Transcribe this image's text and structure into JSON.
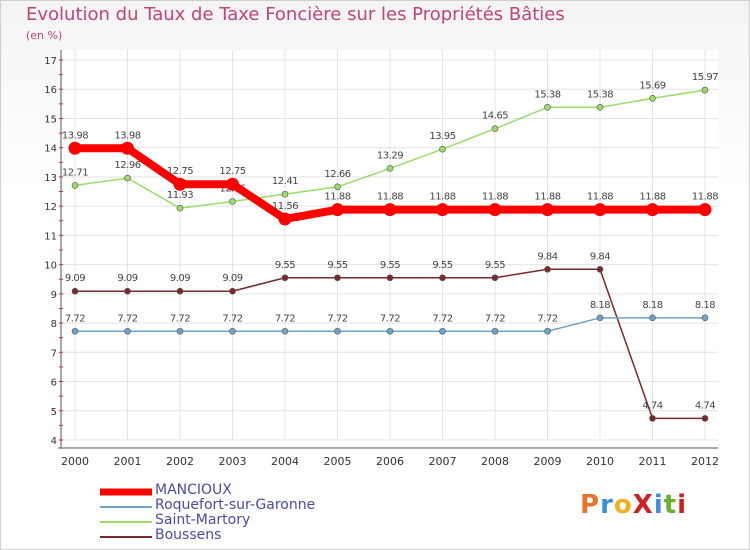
{
  "chart_data": {
    "type": "line",
    "title": "Evolution du Taux de Taxe Foncière sur les Propriétés Bâties",
    "subtitle": "(en %)",
    "x": [
      "2000",
      "2001",
      "2002",
      "2003",
      "2004",
      "2005",
      "2006",
      "2007",
      "2008",
      "2009",
      "2010",
      "2011",
      "2012"
    ],
    "ylim": [
      4,
      17
    ],
    "yticks": [
      "4",
      "5",
      "6",
      "7",
      "8",
      "9",
      "10",
      "11",
      "12",
      "13",
      "14",
      "15",
      "16",
      "17"
    ],
    "grid": true,
    "legend_position": "bottom-left",
    "series": [
      {
        "name": "MANCIOUX",
        "color": "#ff0000",
        "values": [
          13.98,
          13.98,
          12.75,
          12.75,
          11.56,
          11.88,
          11.88,
          11.88,
          11.88,
          11.88,
          11.88,
          11.88,
          11.88
        ],
        "labels": [
          "13.98",
          "13.98",
          "12.75",
          "12.75",
          "11.56",
          "11.88",
          "11.88",
          "11.88",
          "11.88",
          "11.88",
          "11.88",
          "11.88",
          "11.88"
        ]
      },
      {
        "name": "Roquefort-sur-Garonne",
        "color": "#6ea3cc",
        "values": [
          7.72,
          7.72,
          7.72,
          7.72,
          7.72,
          7.72,
          7.72,
          7.72,
          7.72,
          7.72,
          8.18,
          8.18,
          8.18
        ],
        "labels": [
          "7.72",
          "7.72",
          "7.72",
          "7.72",
          "7.72",
          "7.72",
          "7.72",
          "7.72",
          "7.72",
          "7.72",
          "8.18",
          "8.18",
          "8.18"
        ]
      },
      {
        "name": "Saint-Martory",
        "color": "#99dd66",
        "values": [
          12.71,
          12.96,
          11.93,
          12.16,
          12.41,
          12.66,
          13.29,
          13.95,
          14.65,
          15.38,
          15.38,
          15.69,
          15.97
        ],
        "labels": [
          "12.71",
          "12.96",
          "11.93",
          "12.16",
          "12.41",
          "12.66",
          "13.29",
          "13.95",
          "14.65",
          "15.38",
          "15.38",
          "15.69",
          "15.97"
        ]
      },
      {
        "name": "Boussens",
        "color": "#7a2a2a",
        "values": [
          9.09,
          9.09,
          9.09,
          9.09,
          9.55,
          9.55,
          9.55,
          9.55,
          9.55,
          9.84,
          9.84,
          4.74,
          4.74
        ],
        "labels": [
          "9.09",
          "9.09",
          "9.09",
          "9.09",
          "9.55",
          "9.55",
          "9.55",
          "9.55",
          "9.55",
          "9.84",
          "9.84",
          "4.74",
          "4.74"
        ]
      }
    ]
  },
  "logo": {
    "text": "ProXiti",
    "colors": [
      "#e8742c",
      "#3a8fd8",
      "#f0b020",
      "#cc2020",
      "#3a8fd8",
      "#68b030",
      "#cc2020"
    ]
  }
}
